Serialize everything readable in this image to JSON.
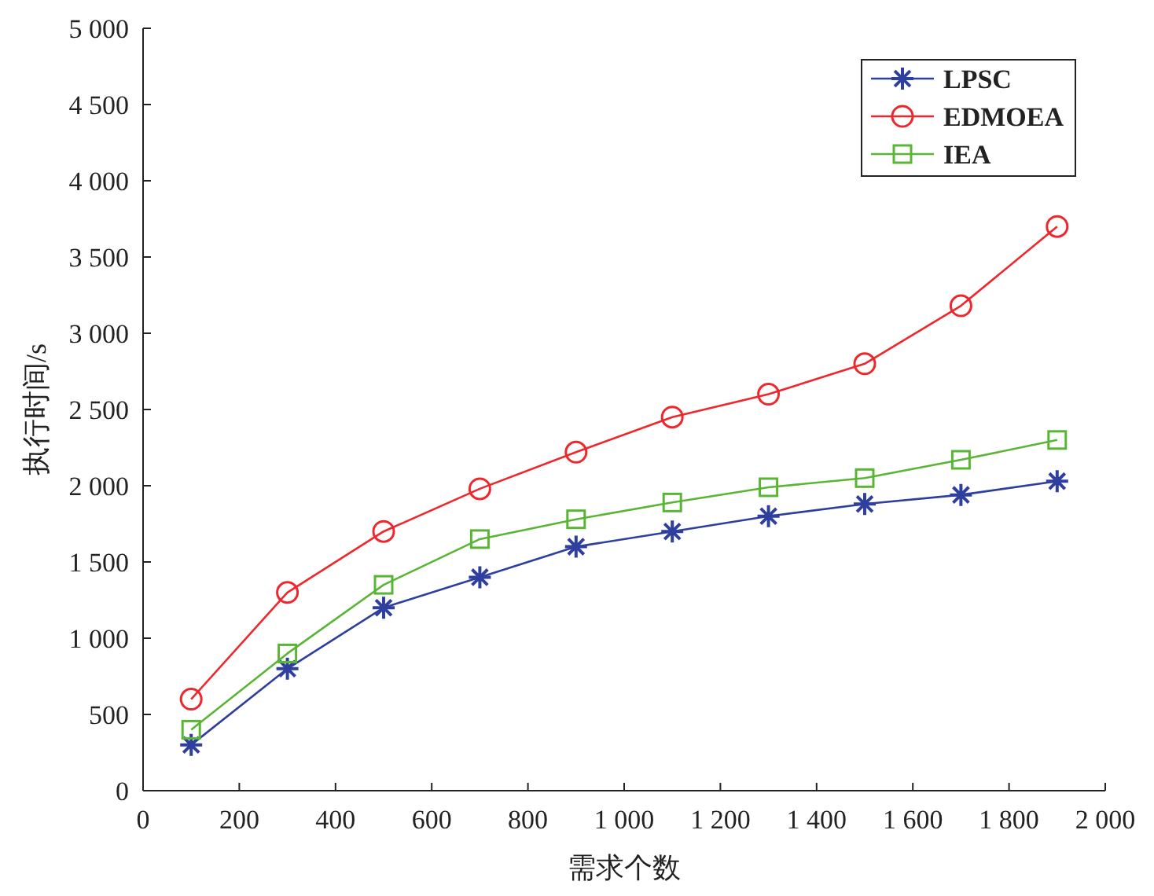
{
  "chart_data": {
    "type": "line",
    "xlabel": "需求个数",
    "ylabel": "执行时间/s",
    "x": [
      100,
      300,
      500,
      700,
      900,
      1100,
      1300,
      1500,
      1700,
      1900
    ],
    "series": [
      {
        "name": "LPSC",
        "color": "#2e3f9e",
        "marker": "cross",
        "values": [
          300,
          800,
          1200,
          1400,
          1600,
          1700,
          1800,
          1880,
          1940,
          2030
        ]
      },
      {
        "name": "EDMOEA",
        "color": "#f0262b",
        "marker": "circle",
        "values": [
          600,
          1300,
          1700,
          1980,
          2220,
          2450,
          2600,
          2800,
          3180,
          3700
        ]
      },
      {
        "name": "IEA",
        "color": "#59b534",
        "marker": "square",
        "values": [
          400,
          900,
          1350,
          1650,
          1780,
          1890,
          1990,
          2050,
          2170,
          2300
        ]
      }
    ],
    "xlim": [
      0,
      2000
    ],
    "xticks": [
      0,
      200,
      400,
      600,
      800,
      {
        "value": 1000,
        "label": "1 000"
      },
      {
        "value": 1200,
        "label": "1 200"
      },
      {
        "value": 1400,
        "label": "1 400"
      },
      {
        "value": 1600,
        "label": "1 600"
      },
      {
        "value": 1800,
        "label": "1 800"
      },
      {
        "value": 2000,
        "label": "2 000"
      }
    ],
    "ylim": [
      0,
      5000
    ],
    "yticks": [
      0,
      500,
      {
        "value": 1000,
        "label": "1 000"
      },
      {
        "value": 1500,
        "label": "1 500"
      },
      {
        "value": 2000,
        "label": "2 000"
      },
      {
        "value": 2500,
        "label": "2 500"
      },
      {
        "value": 3000,
        "label": "3 000"
      },
      {
        "value": 3500,
        "label": "3 500"
      },
      {
        "value": 4000,
        "label": "4 000"
      },
      {
        "value": 4500,
        "label": "4 500"
      },
      {
        "value": 5000,
        "label": "5 000"
      }
    ],
    "grid": false,
    "legend": "top right"
  }
}
